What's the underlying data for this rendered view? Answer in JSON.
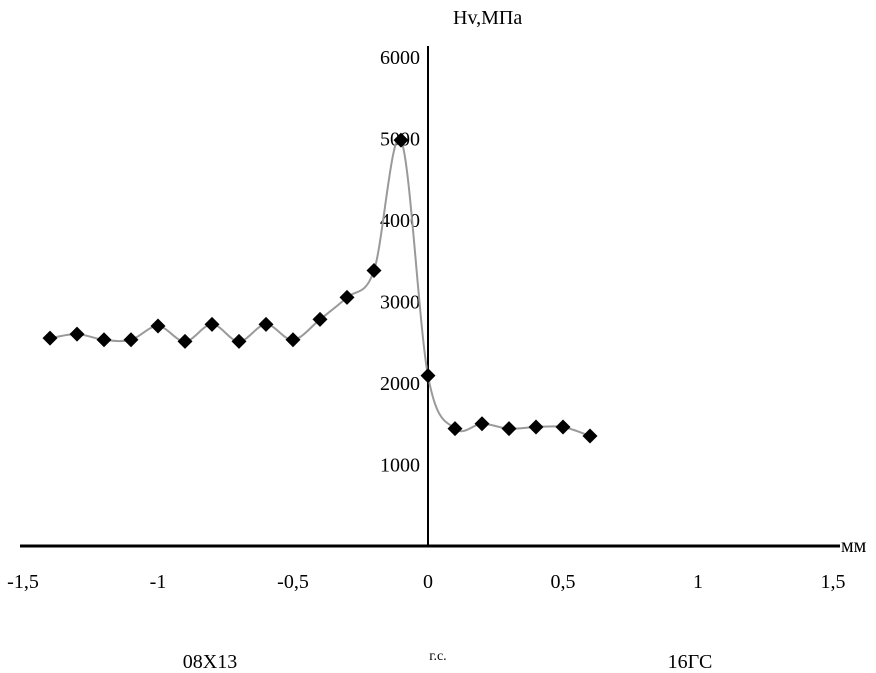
{
  "chart_data": {
    "type": "scatter",
    "title": "",
    "ylabel": "Hv,МПа",
    "xlabel": "мм",
    "xlim": [
      -1.5,
      1.5
    ],
    "ylim": [
      0,
      6000
    ],
    "x_ticks": [
      "-1,5",
      "-1",
      "-0,5",
      "0",
      "0,5",
      "1",
      "1,5"
    ],
    "y_ticks": [
      "1000",
      "2000",
      "3000",
      "4000",
      "5000",
      "6000"
    ],
    "region_labels": {
      "left": "08Х13",
      "center": "г.с.",
      "right": "16ГС"
    },
    "grid": false,
    "legend": "none",
    "series": [
      {
        "marker": "diamond",
        "line": "smooth",
        "x": [
          -1.4,
          -1.3,
          -1.2,
          -1.1,
          -1.0,
          -0.9,
          -0.8,
          -0.7,
          -0.6,
          -0.5,
          -0.4,
          -0.3,
          -0.2,
          -0.1,
          0.0,
          0.1,
          0.2,
          0.3,
          0.4,
          0.5,
          0.6
        ],
        "values": [
          2550,
          2600,
          2530,
          2530,
          2700,
          2510,
          2720,
          2510,
          2720,
          2530,
          2780,
          3050,
          3380,
          4980,
          2090,
          1440,
          1500,
          1440,
          1460,
          1460,
          1350
        ]
      }
    ]
  },
  "colors": {
    "axis": "#000000",
    "line": "#9a9a9a",
    "marker": "#000000"
  }
}
